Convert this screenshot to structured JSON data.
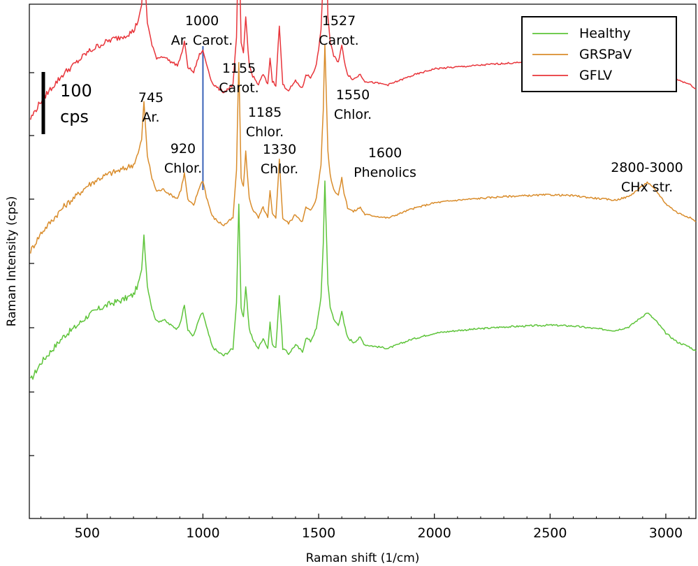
{
  "chart_data": {
    "type": "line",
    "xlabel": "Raman shift (1/cm)",
    "ylabel": "Raman Intensity (cps)",
    "xlim": [
      250,
      3130
    ],
    "x_ticks": [
      500,
      1000,
      1500,
      2000,
      2500,
      3000
    ],
    "y_ticks_labeled": false,
    "grid": false,
    "legend": {
      "position": "top-right",
      "entries": [
        "Healthy",
        "GRSPaV",
        "GFLV"
      ]
    },
    "scale_bar": {
      "value": "100",
      "unit": "cps"
    },
    "marker_line": {
      "x": 1000
    },
    "series": [
      {
        "name": "Healthy",
        "color": "#5ec43a",
        "x": [
          255,
          300,
          350,
          400,
          450,
          500,
          550,
          600,
          650,
          700,
          720,
          735,
          745,
          760,
          780,
          800,
          830,
          860,
          890,
          905,
          920,
          935,
          960,
          985,
          1000,
          1015,
          1040,
          1065,
          1090,
          1110,
          1130,
          1145,
          1155,
          1165,
          1175,
          1185,
          1200,
          1215,
          1240,
          1260,
          1280,
          1290,
          1300,
          1315,
          1330,
          1345,
          1370,
          1400,
          1430,
          1445,
          1465,
          1490,
          1510,
          1520,
          1527,
          1540,
          1550,
          1565,
          1585,
          1600,
          1610,
          1625,
          1650,
          1680,
          1700,
          1750,
          1800,
          1900,
          2000,
          2100,
          2200,
          2300,
          2400,
          2500,
          2600,
          2700,
          2780,
          2840,
          2880,
          2920,
          2960,
          3000,
          3050,
          3100,
          3130
        ],
        "y": [
          12,
          32,
          47,
          62,
          72,
          84,
          92,
          98,
          102,
          108,
          120,
          135,
          175,
          118,
          92,
          78,
          80,
          74,
          70,
          80,
          96,
          68,
          62,
          82,
          88,
          72,
          50,
          44,
          40,
          44,
          48,
          100,
          210,
          92,
          82,
          118,
          70,
          58,
          48,
          60,
          48,
          76,
          52,
          48,
          108,
          48,
          42,
          52,
          44,
          60,
          56,
          70,
          105,
          165,
          235,
          120,
          95,
          80,
          74,
          90,
          75,
          60,
          55,
          60,
          52,
          50,
          48,
          58,
          65,
          68,
          70,
          72,
          73,
          74,
          73,
          70,
          68,
          72,
          80,
          88,
          78,
          65,
          55,
          50,
          45
        ]
      },
      {
        "name": "GRSPaV",
        "color": "#d98c2b",
        "x": [
          255,
          300,
          350,
          400,
          450,
          500,
          550,
          600,
          650,
          700,
          720,
          735,
          745,
          760,
          780,
          800,
          830,
          860,
          890,
          905,
          920,
          935,
          960,
          985,
          1000,
          1015,
          1040,
          1065,
          1090,
          1110,
          1130,
          1145,
          1155,
          1165,
          1175,
          1185,
          1200,
          1215,
          1240,
          1260,
          1280,
          1290,
          1300,
          1315,
          1330,
          1345,
          1370,
          1400,
          1430,
          1445,
          1465,
          1490,
          1510,
          1520,
          1527,
          1540,
          1550,
          1565,
          1585,
          1600,
          1610,
          1625,
          1650,
          1680,
          1700,
          1750,
          1800,
          1900,
          2000,
          2100,
          2200,
          2300,
          2400,
          2500,
          2600,
          2700,
          2780,
          2840,
          2880,
          2920,
          2960,
          3000,
          3050,
          3100,
          3130
        ],
        "y": [
          13,
          33,
          48,
          63,
          74,
          86,
          94,
          100,
          104,
          110,
          122,
          138,
          180,
          120,
          94,
          80,
          82,
          76,
          72,
          82,
          100,
          70,
          64,
          85,
          92,
          74,
          52,
          46,
          42,
          46,
          50,
          104,
          225,
          95,
          85,
          124,
          72,
          60,
          50,
          62,
          50,
          80,
          54,
          50,
          115,
          50,
          44,
          54,
          46,
          62,
          58,
          72,
          110,
          172,
          245,
          125,
          98,
          82,
          76,
          94,
          78,
          62,
          57,
          62,
          54,
          52,
          50,
          60,
          67,
          70,
          72,
          74,
          75,
          76,
          75,
          72,
          70,
          74,
          82,
          90,
          80,
          66,
          56,
          51,
          46
        ]
      },
      {
        "name": "GFLV",
        "color": "#e8343a",
        "x": [
          255,
          300,
          350,
          400,
          450,
          500,
          550,
          600,
          650,
          700,
          720,
          735,
          745,
          760,
          780,
          800,
          830,
          860,
          890,
          905,
          920,
          935,
          960,
          985,
          1000,
          1015,
          1040,
          1065,
          1090,
          1110,
          1130,
          1145,
          1155,
          1165,
          1175,
          1185,
          1200,
          1215,
          1240,
          1260,
          1280,
          1290,
          1300,
          1315,
          1330,
          1345,
          1370,
          1400,
          1430,
          1445,
          1465,
          1490,
          1510,
          1520,
          1527,
          1540,
          1550,
          1565,
          1585,
          1600,
          1610,
          1625,
          1650,
          1680,
          1700,
          1750,
          1800,
          1900,
          2000,
          2100,
          2200,
          2300,
          2400,
          2500,
          2600,
          2700,
          2780,
          2840,
          2880,
          2920,
          2960,
          3000,
          3050,
          3100,
          3130
        ],
        "y": [
          14,
          34,
          50,
          65,
          76,
          88,
          96,
          102,
          106,
          112,
          124,
          140,
          185,
          122,
          96,
          82,
          84,
          78,
          74,
          84,
          100,
          72,
          66,
          86,
          90,
          76,
          54,
          48,
          44,
          48,
          52,
          105,
          230,
          98,
          88,
          128,
          74,
          62,
          52,
          64,
          52,
          82,
          56,
          52,
          118,
          52,
          46,
          56,
          48,
          64,
          60,
          74,
          112,
          175,
          300,
          128,
          100,
          84,
          78,
          96,
          80,
          64,
          58,
          64,
          56,
          54,
          52,
          62,
          70,
          72,
          74,
          76,
          77,
          78,
          77,
          74,
          72,
          76,
          84,
          92,
          82,
          68,
          58,
          53,
          48
        ]
      }
    ],
    "annotations": [
      {
        "lines": [
          "745",
          "Ar."
        ],
        "x": 745
      },
      {
        "lines": [
          "920",
          "Chlor."
        ],
        "x": 920
      },
      {
        "lines": [
          "1000",
          "Ar. Carot."
        ],
        "x": 1000
      },
      {
        "lines": [
          "1155",
          "Carot."
        ],
        "x": 1155
      },
      {
        "lines": [
          "1185",
          "Chlor."
        ],
        "x": 1185
      },
      {
        "lines": [
          "1330",
          "Chlor."
        ],
        "x": 1330
      },
      {
        "lines": [
          "1527",
          "Carot."
        ],
        "x": 1527
      },
      {
        "lines": [
          "1550",
          "Chlor."
        ],
        "x": 1550
      },
      {
        "lines": [
          "1600",
          "Phenolics"
        ],
        "x": 1600
      },
      {
        "lines": [
          "2800-3000",
          "CHx str."
        ],
        "x": 2900
      }
    ]
  }
}
